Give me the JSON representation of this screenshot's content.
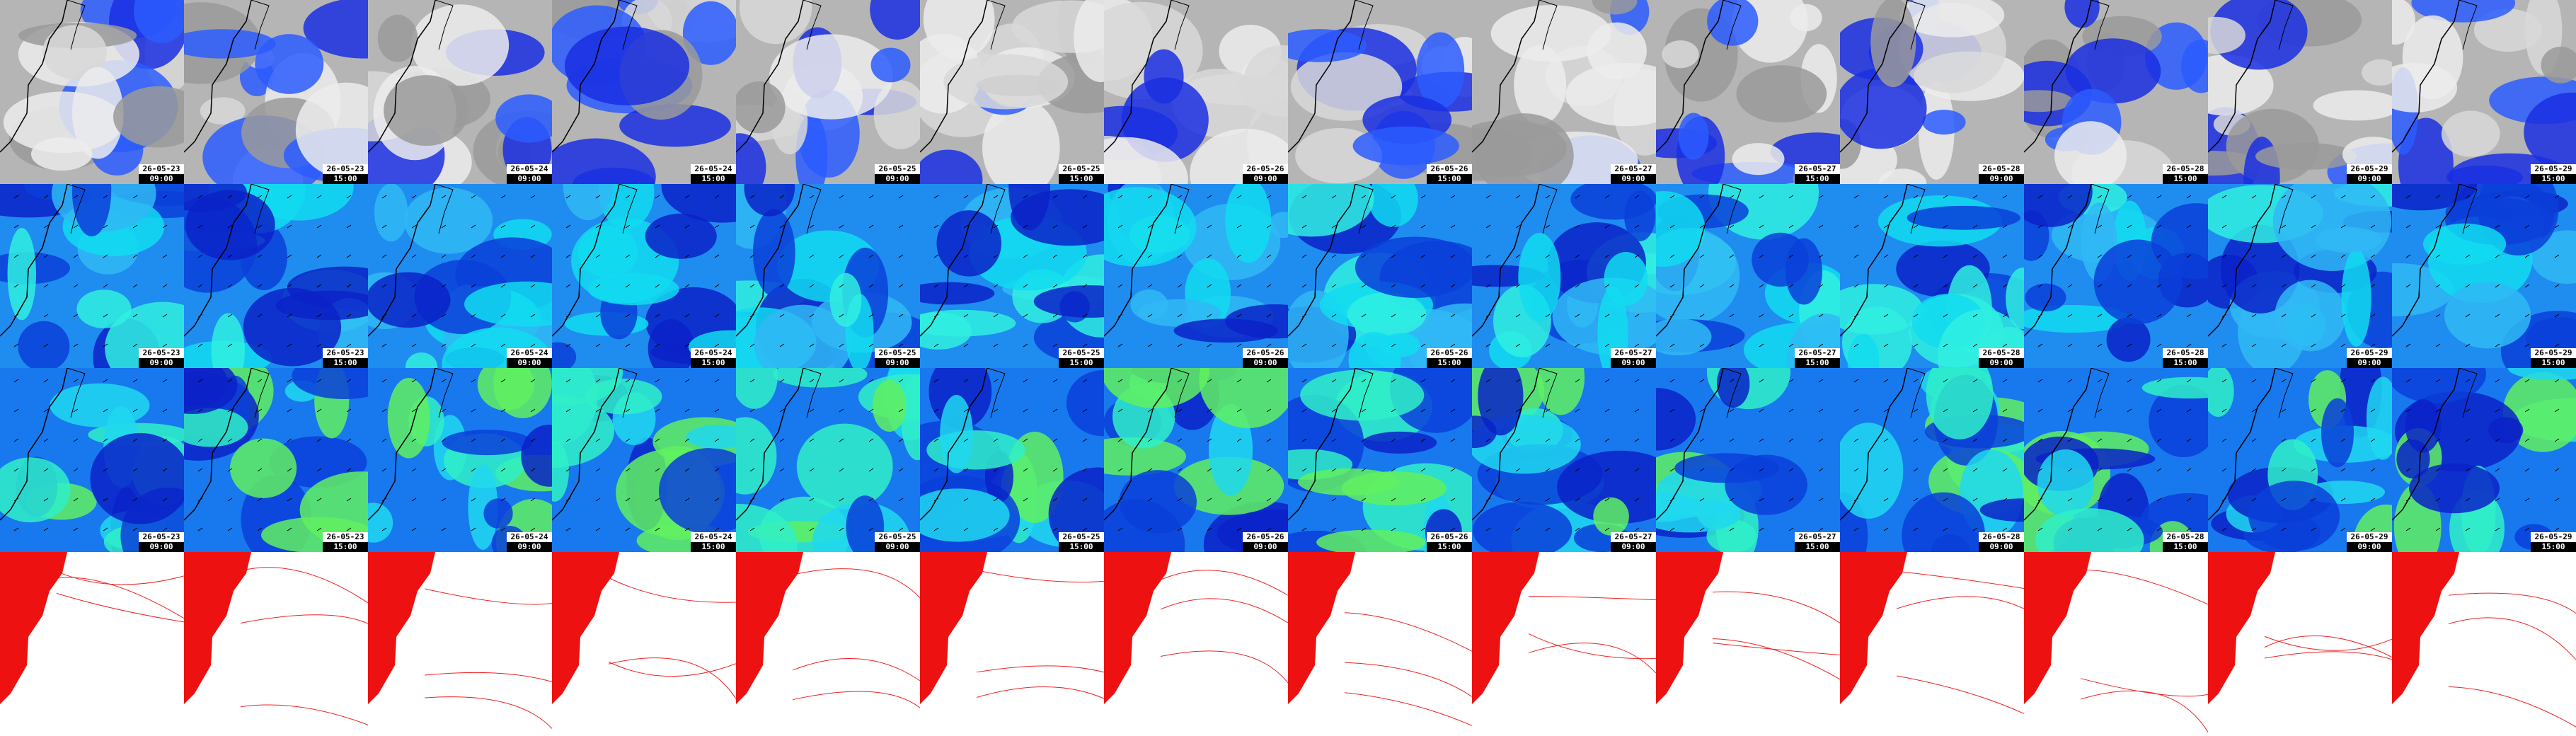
{
  "columns": [
    {
      "date": "26-05-23",
      "time": "09:00"
    },
    {
      "date": "26-05-23",
      "time": "15:00"
    },
    {
      "date": "26-05-24",
      "time": "09:00"
    },
    {
      "date": "26-05-24",
      "time": "15:00"
    },
    {
      "date": "26-05-25",
      "time": "09:00"
    },
    {
      "date": "26-05-25",
      "time": "15:00"
    },
    {
      "date": "26-05-26",
      "time": "09:00"
    },
    {
      "date": "26-05-26",
      "time": "15:00"
    },
    {
      "date": "26-05-27",
      "time": "09:00"
    },
    {
      "date": "26-05-27",
      "time": "15:00"
    },
    {
      "date": "26-05-28",
      "time": "09:00"
    },
    {
      "date": "26-05-28",
      "time": "15:00"
    },
    {
      "date": "26-05-29",
      "time": "09:00"
    },
    {
      "date": "26-05-29",
      "time": "15:00"
    }
  ]
}
